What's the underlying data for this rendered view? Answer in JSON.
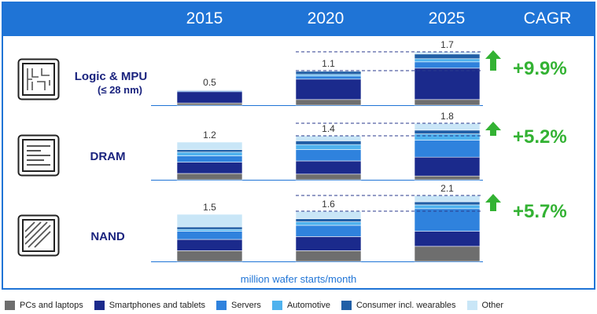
{
  "header": {
    "years": [
      "2015",
      "2020",
      "2025"
    ],
    "cagr_label": "CAGR"
  },
  "unit_label": "million wafer starts/month",
  "colors": {
    "header_bg": "#1f74d6",
    "PCs and laptops": "#6e6e6e",
    "Smartphones and tablets": "#1b2a8c",
    "Servers": "#2f82dd",
    "Automotive": "#4fb2ee",
    "Consumer incl. wearables": "#215fa6",
    "Other": "#c9e6f7",
    "cagr_green": "#33b233",
    "arrow_green": "#33b233"
  },
  "rows": [
    {
      "label": "Logic & MPU",
      "sublabel": "(≤ 28 nm)",
      "icon": "logic-chip-icon",
      "cagr": "+9.9%"
    },
    {
      "label": "DRAM",
      "sublabel": "",
      "icon": "dram-chip-icon",
      "cagr": "+5.2%"
    },
    {
      "label": "NAND",
      "sublabel": "",
      "icon": "nand-chip-icon",
      "cagr": "+5.7%"
    }
  ],
  "legend": [
    "PCs and laptops",
    "Smartphones and tablets",
    "Servers",
    "Automotive",
    "Consumer incl. wearables",
    "Other"
  ],
  "chart_data": {
    "type": "bar",
    "stacked": true,
    "unit": "million wafer starts/month",
    "categories": [
      "2015",
      "2020",
      "2025"
    ],
    "panels": [
      {
        "name": "Logic & MPU (≤ 28 nm)",
        "totals": [
          0.5,
          1.1,
          1.7
        ],
        "cagr": "+9.9%",
        "segments": {
          "PCs and laptops": [
            0.07,
            0.18,
            0.18
          ],
          "Smartphones and tablets": [
            0.36,
            0.65,
            1.0
          ],
          "Servers": [
            0.03,
            0.1,
            0.2
          ],
          "Automotive": [
            0.0,
            0.05,
            0.1
          ],
          "Consumer incl. wearables": [
            0.02,
            0.1,
            0.15
          ],
          "Other": [
            0.02,
            0.02,
            0.07
          ]
        }
      },
      {
        "name": "DRAM",
        "totals": [
          1.2,
          1.4,
          1.8
        ],
        "cagr": "+5.2%",
        "segments": {
          "PCs and laptops": [
            0.2,
            0.18,
            0.12
          ],
          "Smartphones and tablets": [
            0.36,
            0.42,
            0.6
          ],
          "Servers": [
            0.2,
            0.36,
            0.54
          ],
          "Automotive": [
            0.12,
            0.16,
            0.2
          ],
          "Consumer incl. wearables": [
            0.08,
            0.12,
            0.12
          ],
          "Other": [
            0.24,
            0.16,
            0.22
          ]
        }
      },
      {
        "name": "NAND",
        "totals": [
          1.5,
          1.6,
          2.1
        ],
        "cagr": "+5.7%",
        "segments": {
          "PCs and laptops": [
            0.34,
            0.34,
            0.48
          ],
          "Smartphones and tablets": [
            0.36,
            0.45,
            0.48
          ],
          "Servers": [
            0.26,
            0.36,
            0.72
          ],
          "Automotive": [
            0.06,
            0.11,
            0.12
          ],
          "Consumer incl. wearables": [
            0.08,
            0.1,
            0.1
          ],
          "Other": [
            0.4,
            0.24,
            0.2
          ]
        }
      }
    ]
  }
}
